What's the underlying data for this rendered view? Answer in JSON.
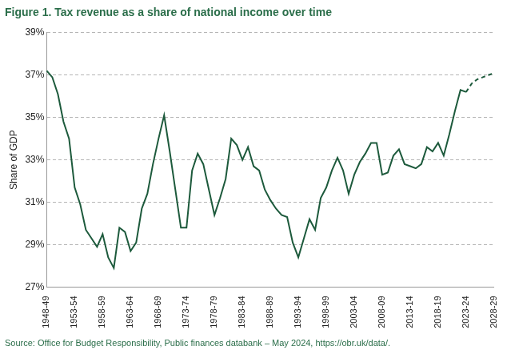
{
  "chart_data": {
    "type": "line",
    "title": "Figure 1. Tax revenue as a share of national income over time",
    "source": "Source: Office for Budget Responsibility, Public finances databank – May 2024, https://obr.uk/data/.",
    "y_label": "Share of GDP",
    "categories": [
      "1948-49",
      null,
      null,
      null,
      null,
      "1953-54",
      null,
      null,
      null,
      null,
      "1958-59",
      null,
      null,
      null,
      null,
      "1963-64",
      null,
      null,
      null,
      null,
      "1968-69",
      null,
      null,
      null,
      null,
      "1973-74",
      null,
      null,
      null,
      null,
      "1978-79",
      null,
      null,
      null,
      null,
      "1983-84",
      null,
      null,
      null,
      null,
      "1988-89",
      null,
      null,
      null,
      null,
      "1993-94",
      null,
      null,
      null,
      null,
      "1998-99",
      null,
      null,
      null,
      null,
      "2003-04",
      null,
      null,
      null,
      null,
      "2008-09",
      null,
      null,
      null,
      null,
      "2013-14",
      null,
      null,
      null,
      null,
      "2018-19",
      null,
      null,
      null,
      null,
      "2023-24",
      null,
      null,
      null,
      null,
      "2028-29"
    ],
    "series": [
      {
        "color": "#1d5a3c",
        "line_style": "solid",
        "values": [
          37.2,
          36.9,
          36.1,
          34.8,
          34.0,
          31.7,
          30.9,
          29.7,
          29.3,
          28.9,
          29.5,
          28.4,
          27.9,
          29.8,
          29.6,
          28.7,
          29.1,
          30.7,
          31.4,
          32.8,
          34.0,
          35.1,
          33.4,
          31.6,
          29.8,
          29.8,
          32.5,
          33.3,
          32.8,
          31.6,
          30.4,
          31.2,
          32.1,
          34.0,
          33.7,
          33.0,
          33.6,
          32.7,
          32.5,
          31.6,
          31.1,
          30.7,
          30.4,
          30.3,
          29.1,
          28.4,
          29.3,
          30.2,
          29.7,
          31.2,
          31.7,
          32.5,
          33.1,
          32.5,
          31.4,
          32.3,
          32.9,
          33.3,
          33.8,
          33.8,
          32.3,
          32.4,
          33.2,
          33.5,
          32.8,
          32.7,
          32.6,
          32.8,
          33.6,
          33.4,
          33.8,
          33.2,
          34.2,
          35.3,
          36.3,
          36.2,
          null,
          null,
          null,
          null,
          null
        ]
      },
      {
        "color": "#1d5a3c",
        "line_style": "dashed",
        "values": [
          null,
          null,
          null,
          null,
          null,
          null,
          null,
          null,
          null,
          null,
          null,
          null,
          null,
          null,
          null,
          null,
          null,
          null,
          null,
          null,
          null,
          null,
          null,
          null,
          null,
          null,
          null,
          null,
          null,
          null,
          null,
          null,
          null,
          null,
          null,
          null,
          null,
          null,
          null,
          null,
          null,
          null,
          null,
          null,
          null,
          null,
          null,
          null,
          null,
          null,
          null,
          null,
          null,
          null,
          null,
          null,
          null,
          null,
          null,
          null,
          null,
          null,
          null,
          null,
          null,
          null,
          null,
          null,
          null,
          null,
          null,
          null,
          null,
          null,
          null,
          36.2,
          36.6,
          36.8,
          36.9,
          37.0,
          37.1
        ]
      }
    ],
    "ylim": [
      27,
      39
    ],
    "yticks": [
      {
        "value": 27,
        "label": "27%"
      },
      {
        "value": 29,
        "label": "29%"
      },
      {
        "value": 31,
        "label": "31%"
      },
      {
        "value": 33,
        "label": "33%"
      },
      {
        "value": 35,
        "label": "35%"
      },
      {
        "value": 37,
        "label": "37%"
      },
      {
        "value": 39,
        "label": "39%"
      }
    ],
    "grid": true
  }
}
